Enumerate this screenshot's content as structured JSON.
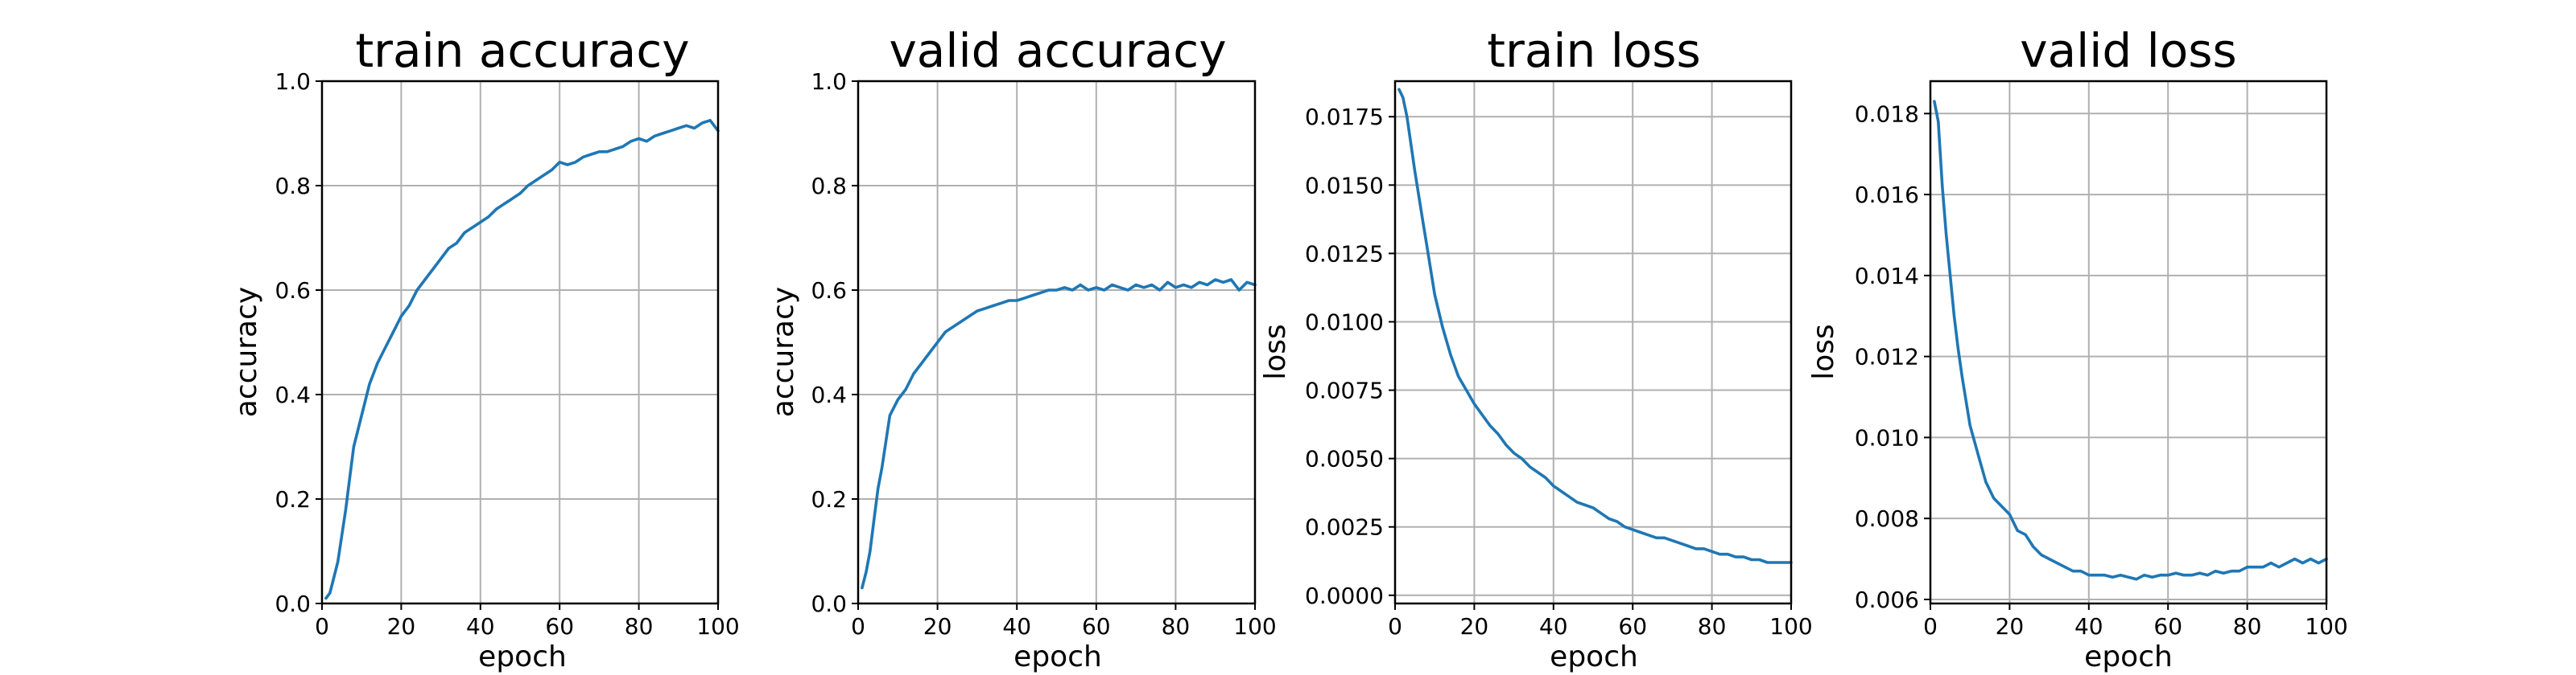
{
  "colors": {
    "series": "#1f77b4",
    "grid": "#b0b0b0",
    "axes": "#000000"
  },
  "chart_data": [
    {
      "type": "line",
      "title": "train accuracy",
      "xlabel": "epoch",
      "ylabel": "accuracy",
      "xlim": [
        0,
        100
      ],
      "ylim": [
        0,
        1.0
      ],
      "xticks": [
        0,
        20,
        40,
        60,
        80,
        100
      ],
      "yticks": [
        "0.0",
        "0.2",
        "0.4",
        "0.6",
        "0.8",
        "1.0"
      ],
      "grid": true,
      "series": [
        {
          "x": [
            1,
            2,
            3,
            4,
            5,
            6,
            7,
            8,
            10,
            12,
            14,
            16,
            18,
            20,
            22,
            24,
            26,
            28,
            30,
            32,
            34,
            36,
            38,
            40,
            42,
            44,
            46,
            48,
            50,
            52,
            54,
            56,
            58,
            60,
            62,
            64,
            66,
            68,
            70,
            72,
            74,
            76,
            78,
            80,
            82,
            84,
            86,
            88,
            90,
            92,
            94,
            96,
            98,
            100
          ],
          "y": [
            0.01,
            0.02,
            0.05,
            0.08,
            0.13,
            0.18,
            0.24,
            0.3,
            0.36,
            0.42,
            0.46,
            0.49,
            0.52,
            0.55,
            0.57,
            0.6,
            0.62,
            0.64,
            0.66,
            0.68,
            0.69,
            0.71,
            0.72,
            0.73,
            0.74,
            0.755,
            0.765,
            0.775,
            0.785,
            0.8,
            0.81,
            0.82,
            0.83,
            0.845,
            0.84,
            0.845,
            0.855,
            0.86,
            0.865,
            0.865,
            0.87,
            0.875,
            0.885,
            0.89,
            0.885,
            0.895,
            0.9,
            0.905,
            0.91,
            0.915,
            0.91,
            0.92,
            0.925,
            0.905
          ]
        }
      ]
    },
    {
      "type": "line",
      "title": "valid accuracy",
      "xlabel": "epoch",
      "ylabel": "accuracy",
      "xlim": [
        0,
        100
      ],
      "ylim": [
        0,
        1.0
      ],
      "xticks": [
        0,
        20,
        40,
        60,
        80,
        100
      ],
      "yticks": [
        "0.0",
        "0.2",
        "0.4",
        "0.6",
        "0.8",
        "1.0"
      ],
      "grid": true,
      "series": [
        {
          "x": [
            1,
            2,
            3,
            4,
            5,
            6,
            7,
            8,
            10,
            12,
            14,
            16,
            18,
            20,
            22,
            24,
            26,
            28,
            30,
            32,
            34,
            36,
            38,
            40,
            42,
            44,
            46,
            48,
            50,
            52,
            54,
            56,
            58,
            60,
            62,
            64,
            66,
            68,
            70,
            72,
            74,
            76,
            78,
            80,
            82,
            84,
            86,
            88,
            90,
            92,
            94,
            96,
            98,
            100
          ],
          "y": [
            0.03,
            0.06,
            0.1,
            0.16,
            0.22,
            0.26,
            0.31,
            0.36,
            0.39,
            0.41,
            0.44,
            0.46,
            0.48,
            0.5,
            0.52,
            0.53,
            0.54,
            0.55,
            0.56,
            0.565,
            0.57,
            0.575,
            0.58,
            0.58,
            0.585,
            0.59,
            0.595,
            0.6,
            0.6,
            0.605,
            0.6,
            0.61,
            0.6,
            0.605,
            0.6,
            0.61,
            0.605,
            0.6,
            0.61,
            0.605,
            0.61,
            0.6,
            0.615,
            0.605,
            0.61,
            0.605,
            0.615,
            0.61,
            0.62,
            0.615,
            0.62,
            0.6,
            0.615,
            0.61
          ]
        }
      ]
    },
    {
      "type": "line",
      "title": "train loss",
      "xlabel": "epoch",
      "ylabel": "loss",
      "xlim": [
        0,
        100
      ],
      "ylim": [
        -0.0003,
        0.0188
      ],
      "xticks": [
        0,
        20,
        40,
        60,
        80,
        100
      ],
      "yticks": [
        "0.0000",
        "0.0025",
        "0.0050",
        "0.0075",
        "0.0100",
        "0.0125",
        "0.0150",
        "0.0175"
      ],
      "grid": true,
      "series": [
        {
          "x": [
            1,
            2,
            3,
            4,
            5,
            6,
            7,
            8,
            10,
            12,
            14,
            16,
            18,
            20,
            22,
            24,
            26,
            28,
            30,
            32,
            34,
            36,
            38,
            40,
            42,
            44,
            46,
            48,
            50,
            52,
            54,
            56,
            58,
            60,
            62,
            64,
            66,
            68,
            70,
            72,
            74,
            76,
            78,
            80,
            82,
            84,
            86,
            88,
            90,
            92,
            94,
            96,
            98,
            100
          ],
          "y": [
            0.0185,
            0.0182,
            0.0175,
            0.0165,
            0.0155,
            0.0146,
            0.0137,
            0.0128,
            0.011,
            0.0098,
            0.0088,
            0.008,
            0.0075,
            0.007,
            0.0066,
            0.0062,
            0.0059,
            0.0055,
            0.0052,
            0.005,
            0.0047,
            0.0045,
            0.0043,
            0.004,
            0.0038,
            0.0036,
            0.0034,
            0.0033,
            0.0032,
            0.003,
            0.0028,
            0.0027,
            0.0025,
            0.0024,
            0.0023,
            0.0022,
            0.0021,
            0.0021,
            0.002,
            0.0019,
            0.0018,
            0.0017,
            0.0017,
            0.0016,
            0.0015,
            0.0015,
            0.0014,
            0.0014,
            0.0013,
            0.0013,
            0.0012,
            0.0012,
            0.0012,
            0.0012
          ]
        }
      ]
    },
    {
      "type": "line",
      "title": "valid loss",
      "xlabel": "epoch",
      "ylabel": "loss",
      "xlim": [
        0,
        100
      ],
      "ylim": [
        0.0059,
        0.0188
      ],
      "xticks": [
        0,
        20,
        40,
        60,
        80,
        100
      ],
      "yticks": [
        "0.006",
        "0.008",
        "0.010",
        "0.012",
        "0.014",
        "0.016",
        "0.018"
      ],
      "grid": true,
      "series": [
        {
          "x": [
            1,
            2,
            3,
            4,
            5,
            6,
            7,
            8,
            10,
            12,
            14,
            16,
            18,
            20,
            22,
            24,
            26,
            28,
            30,
            32,
            34,
            36,
            38,
            40,
            42,
            44,
            46,
            48,
            50,
            52,
            54,
            56,
            58,
            60,
            62,
            64,
            66,
            68,
            70,
            72,
            74,
            76,
            78,
            80,
            82,
            84,
            86,
            88,
            90,
            92,
            94,
            96,
            98,
            100
          ],
          "y": [
            0.0183,
            0.0178,
            0.0162,
            0.015,
            0.014,
            0.013,
            0.0122,
            0.0115,
            0.0103,
            0.0096,
            0.0089,
            0.0085,
            0.0083,
            0.0081,
            0.0077,
            0.0076,
            0.0073,
            0.0071,
            0.007,
            0.0069,
            0.0068,
            0.0067,
            0.0067,
            0.0066,
            0.0066,
            0.0066,
            0.00655,
            0.0066,
            0.00655,
            0.0065,
            0.0066,
            0.00655,
            0.0066,
            0.0066,
            0.00665,
            0.0066,
            0.0066,
            0.00665,
            0.0066,
            0.0067,
            0.00665,
            0.0067,
            0.0067,
            0.0068,
            0.0068,
            0.0068,
            0.0069,
            0.0068,
            0.0069,
            0.007,
            0.0069,
            0.007,
            0.0069,
            0.007
          ]
        }
      ]
    }
  ]
}
